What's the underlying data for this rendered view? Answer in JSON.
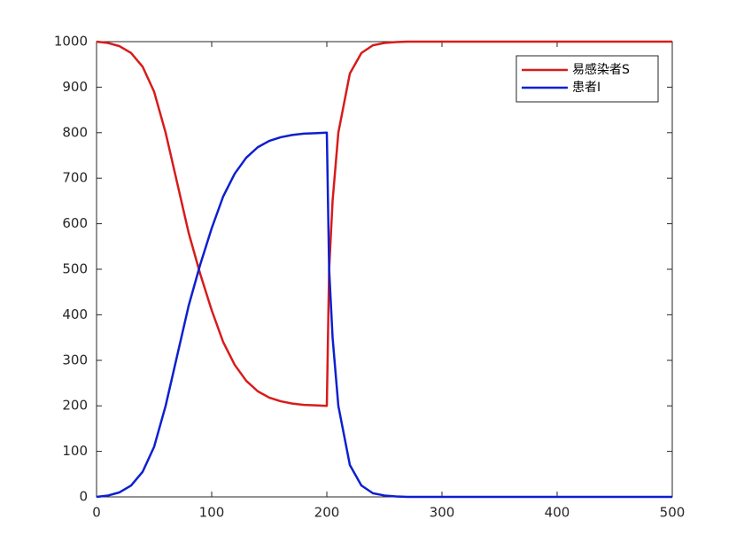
{
  "chart_data": {
    "type": "line",
    "x": [
      0,
      10,
      20,
      30,
      40,
      50,
      60,
      70,
      80,
      90,
      100,
      110,
      120,
      130,
      140,
      150,
      160,
      170,
      180,
      190,
      200,
      201,
      202,
      205,
      210,
      220,
      230,
      240,
      250,
      260,
      270,
      280,
      300,
      350,
      400,
      450,
      500
    ],
    "series": [
      {
        "name": "易感染者S",
        "color": "#d81b1b",
        "values": [
          1000,
          997,
          990,
          975,
          945,
          890,
          800,
          690,
          580,
          490,
          410,
          340,
          290,
          255,
          232,
          218,
          210,
          205,
          202,
          201,
          200,
          350,
          500,
          650,
          800,
          930,
          975,
          992,
          997,
          999,
          1000,
          1000,
          1000,
          1000,
          1000,
          1000,
          1000
        ]
      },
      {
        "name": "患者I",
        "color": "#0d1fd1",
        "values": [
          0,
          3,
          10,
          25,
          55,
          110,
          200,
          310,
          420,
          510,
          590,
          660,
          710,
          745,
          768,
          782,
          790,
          795,
          798,
          799,
          800,
          650,
          500,
          350,
          200,
          70,
          25,
          8,
          3,
          1,
          0,
          0,
          0,
          0,
          0,
          0,
          0
        ]
      }
    ],
    "xlim": [
      0,
      500
    ],
    "xticks": [
      0,
      100,
      200,
      300,
      400,
      500
    ],
    "ylim": [
      0,
      1000
    ],
    "yticks": [
      0,
      100,
      200,
      300,
      400,
      500,
      600,
      700,
      800,
      900,
      1000
    ],
    "legend": "northeast"
  }
}
